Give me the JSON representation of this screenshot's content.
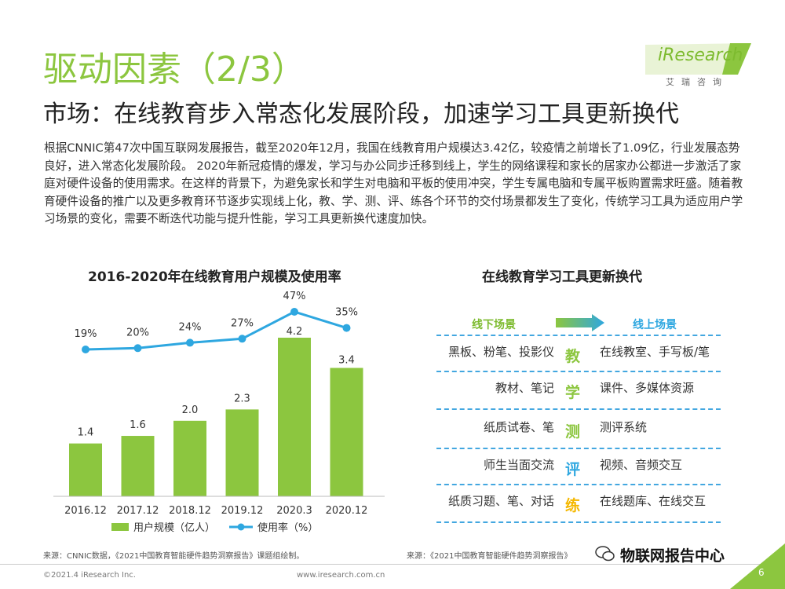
{
  "header": {
    "title": "驱动因素（2/3）",
    "subtitle": "市场：在线教育步入常态化发展阶段，加速学习工具更新换代",
    "logo_text": "iResearch",
    "logo_sub": "艾瑞咨询"
  },
  "body_text": "根据CNNIC第47次中国互联网发展报告，截至2020年12月，我国在线教育用户规模达3.42亿，较疫情之前增长了1.09亿，行业发展态势良好，进入常态化发展阶段。 2020年新冠疫情的爆发，学习与办公同步迁移到线上，学生的网络课程和家长的居家办公都进一步激活了家庭对硬件设备的使用需求。在这样的背景下，为避免家长和学生对电脑和平板的使用冲突，学生专属电脑和专属平板购置需求旺盛。随着教育硬件设备的推广以及更多教育环节逐步实现线上化，教、学、测、评、练各个环节的交付场景都发生了变化，传统学习工具为适应用户学习场景的变化，需要不断迭代功能与提升性能，学习工具更新换代速度加快。",
  "chart_data": {
    "type": "bar",
    "title": "2016-2020年在线教育用户规模及使用率",
    "categories": [
      "2016.12",
      "2017.12",
      "2018.12",
      "2019.12",
      "2020.3",
      "2020.12"
    ],
    "series": [
      {
        "name": "用户规模（亿人）",
        "type": "bar",
        "values": [
          1.4,
          1.6,
          2.0,
          2.3,
          4.2,
          3.4
        ],
        "labels": [
          "1.4",
          "1.6",
          "2.0",
          "2.3",
          "4.2",
          "3.4"
        ],
        "color": "#8cc63f"
      },
      {
        "name": "使用率（%）",
        "type": "line",
        "values": [
          19,
          20,
          24,
          27,
          47,
          35
        ],
        "labels": [
          "19%",
          "20%",
          "24%",
          "27%",
          "47%",
          "35%"
        ],
        "color": "#2ea7e0"
      }
    ],
    "legend_position": "bottom",
    "grid": false
  },
  "tools": {
    "title": "在线教育学习工具更新换代",
    "offline_label": "线下场景",
    "online_label": "线上场景",
    "rows": [
      {
        "offline": "黑板、粉笔、投影仪",
        "stage": "教",
        "online": "在线教室、手写板/笔",
        "color": "#8cc63f"
      },
      {
        "offline": "教材、笔记",
        "stage": "学",
        "online": "课件、多媒体资源",
        "color": "#8cc63f"
      },
      {
        "offline": "纸质试卷、笔",
        "stage": "测",
        "online": "测评系统",
        "color": "#8cc63f"
      },
      {
        "offline": "师生当面交流",
        "stage": "评",
        "online": "视频、音频交互",
        "color": "#2ea7e0"
      },
      {
        "offline": "纸质习题、笔、对话",
        "stage": "练",
        "online": "在线题库、在线交互",
        "color": "#f5b800"
      }
    ]
  },
  "source_left": "来源：CNNIC数据，《2021中国教育智能硬件趋势洞察报告》课题组绘制。",
  "source_right": "来源：《2021中国教育智能硬件趋势洞察报告》",
  "footer": {
    "copyright": "©2021.4 iResearch Inc.",
    "website": "www.iresearch.com.cn",
    "page": "6"
  },
  "watermark": "物联网报告中心",
  "colors": {
    "accent_green": "#8cc63f",
    "accent_blue": "#2ea7e0",
    "accent_yellow": "#f5b800"
  }
}
